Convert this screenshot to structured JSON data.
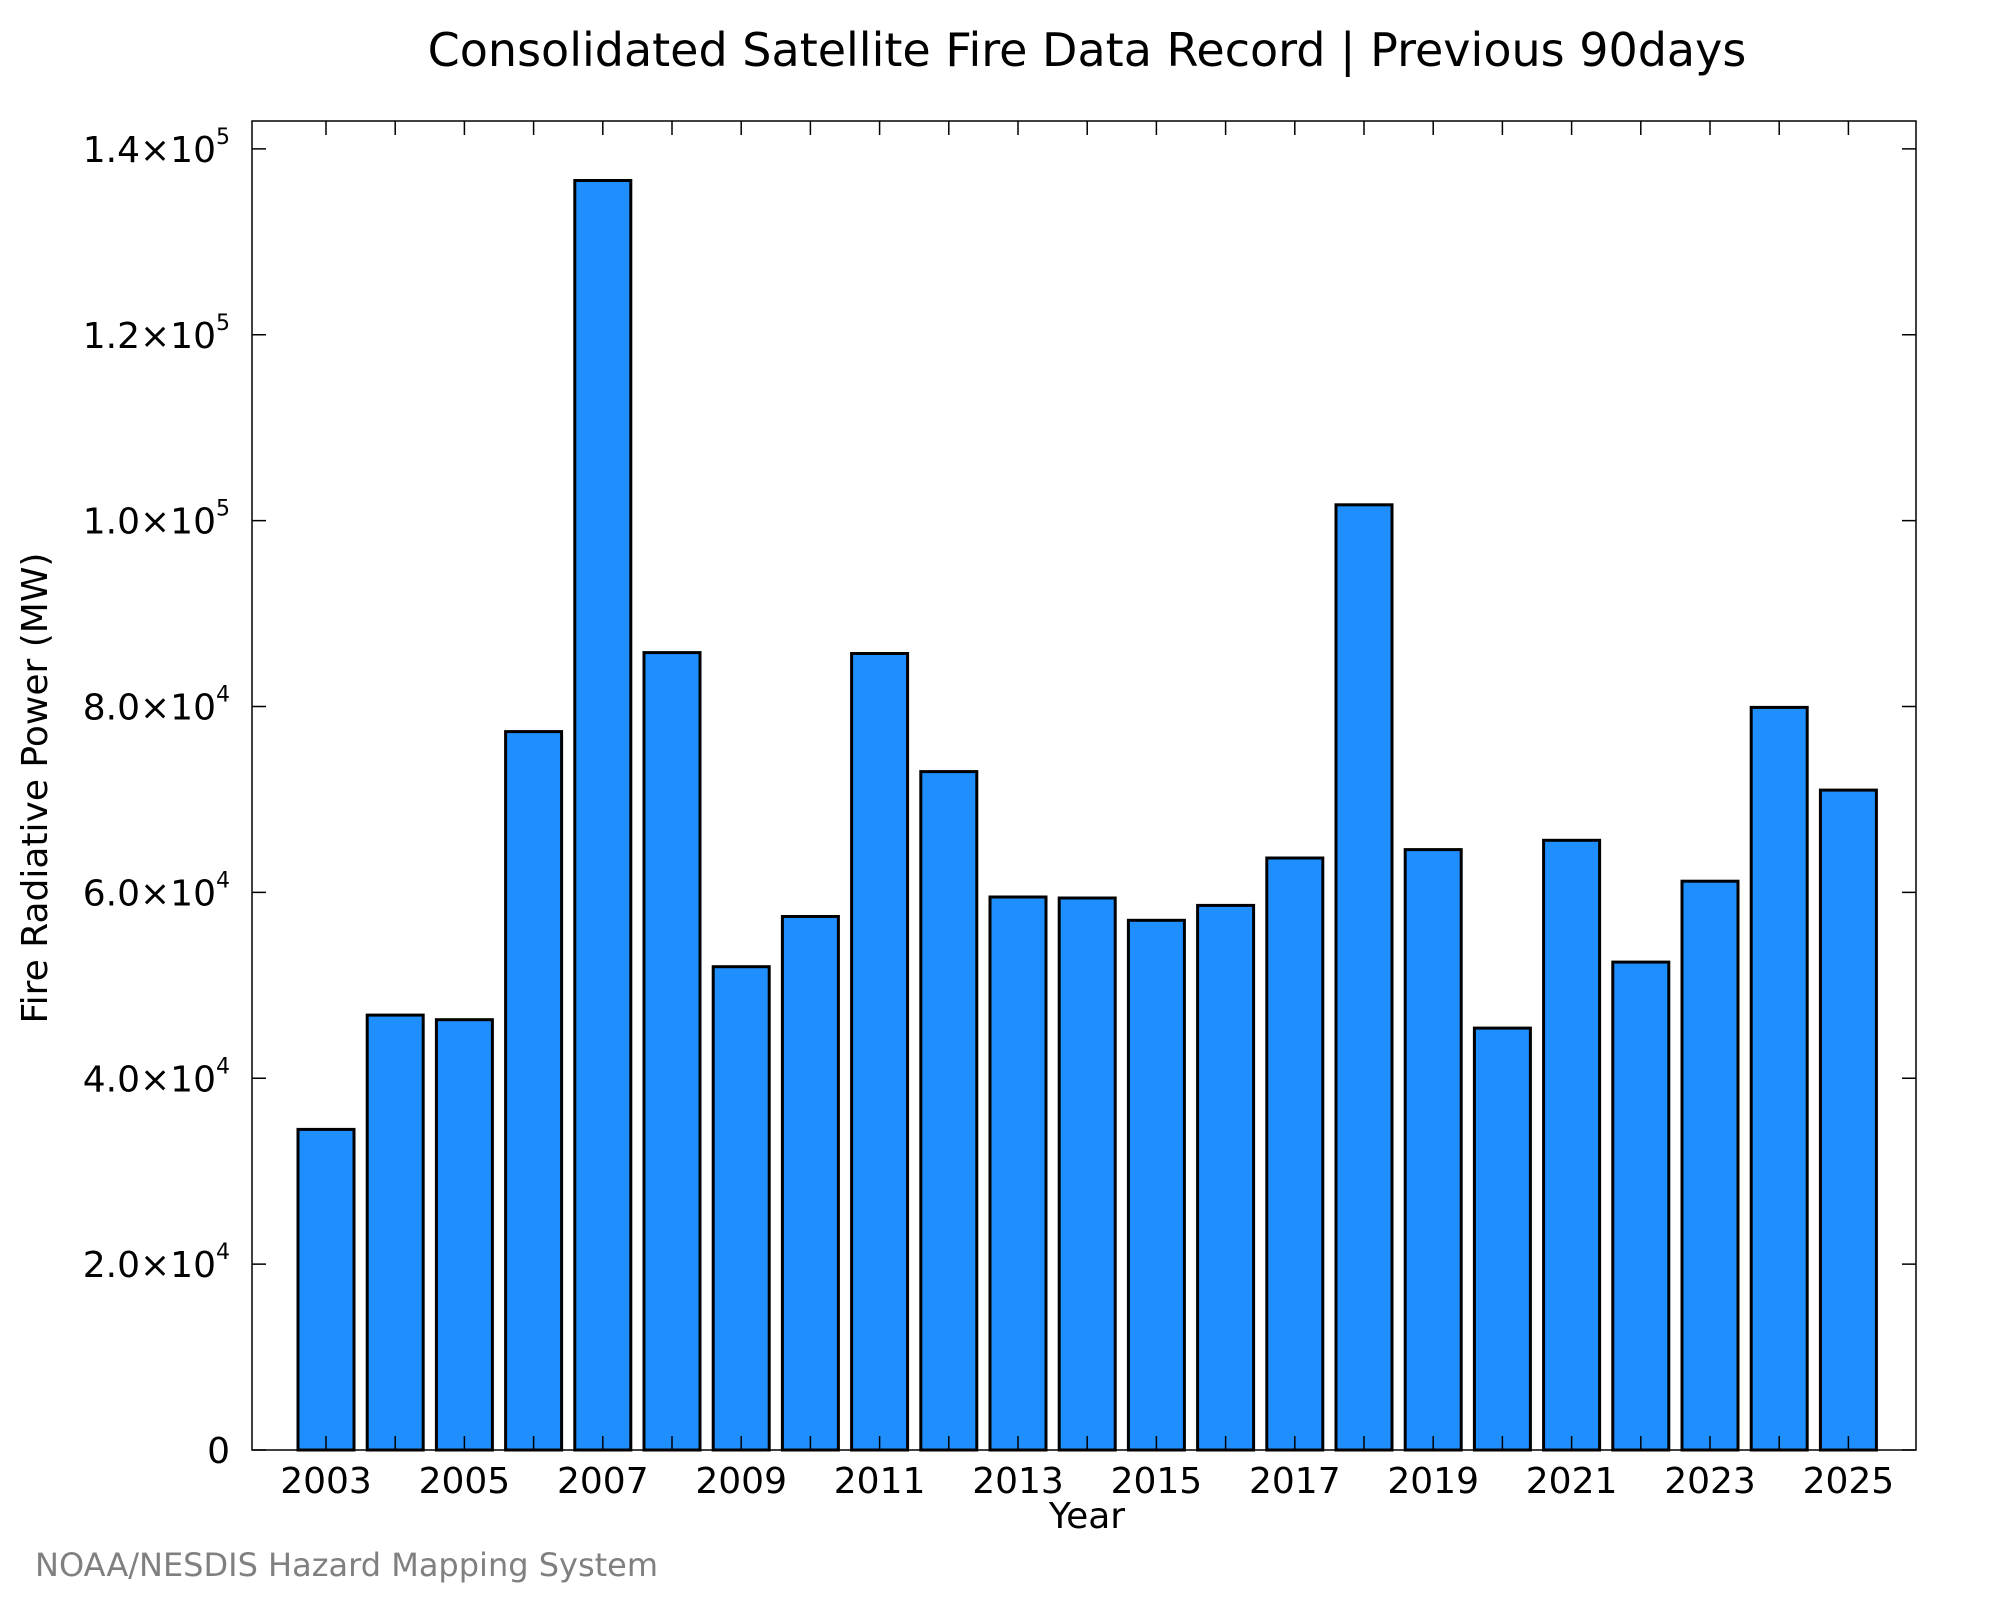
{
  "chart_data": {
    "type": "bar",
    "title": "Consolidated Satellite Fire Data Record | Previous 90days",
    "xlabel": "Year",
    "ylabel": "Fire Radiative Power (MW)",
    "ylim": [
      0,
      143000
    ],
    "grid": false,
    "bar_color": "#1f8fff",
    "categories": [
      "2003",
      "2004",
      "2005",
      "2006",
      "2007",
      "2008",
      "2009",
      "2010",
      "2011",
      "2012",
      "2013",
      "2014",
      "2015",
      "2016",
      "2017",
      "2018",
      "2019",
      "2020",
      "2021",
      "2022",
      "2023",
      "2024",
      "2025"
    ],
    "x_tick_labels": [
      "2003",
      "2005",
      "2007",
      "2009",
      "2011",
      "2013",
      "2015",
      "2017",
      "2019",
      "2021",
      "2023",
      "2025"
    ],
    "y_ticks": [
      {
        "value": 0,
        "mantissa": "0",
        "exponent": ""
      },
      {
        "value": 20000,
        "mantissa": "2.0×10",
        "exponent": "4"
      },
      {
        "value": 40000,
        "mantissa": "4.0×10",
        "exponent": "4"
      },
      {
        "value": 60000,
        "mantissa": "6.0×10",
        "exponent": "4"
      },
      {
        "value": 80000,
        "mantissa": "8.0×10",
        "exponent": "4"
      },
      {
        "value": 100000,
        "mantissa": "1.0×10",
        "exponent": "5"
      },
      {
        "value": 120000,
        "mantissa": "1.2×10",
        "exponent": "5"
      },
      {
        "value": 140000,
        "mantissa": "1.4×10",
        "exponent": "5"
      }
    ],
    "values": [
      34500,
      46800,
      46300,
      77300,
      136600,
      85800,
      52000,
      57400,
      85700,
      73000,
      59500,
      59400,
      57000,
      58600,
      63700,
      101700,
      64600,
      45400,
      65600,
      52500,
      61200,
      79900,
      71000
    ]
  },
  "credit": "NOAA/NESDIS Hazard Mapping System"
}
